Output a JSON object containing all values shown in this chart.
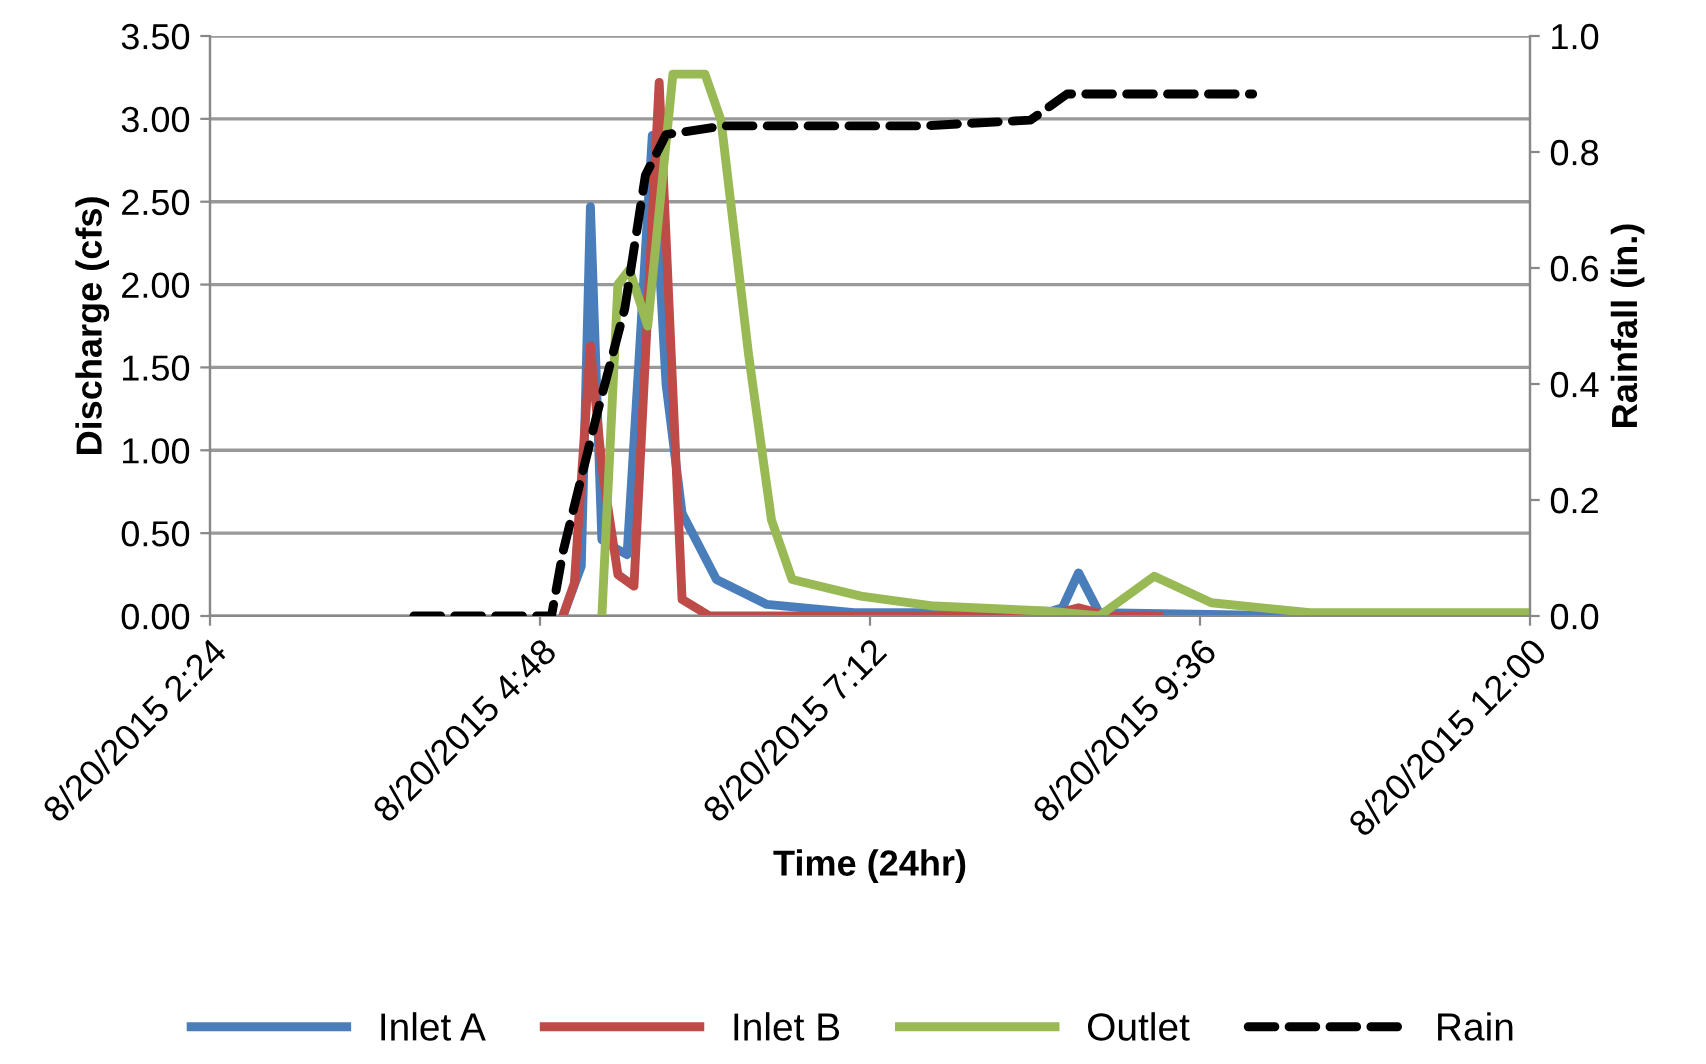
{
  "chart_data": {
    "type": "line",
    "xlabel": "Time (24hr)",
    "ylabel": "Discharge (cfs)",
    "y2label": "Rainfall (in.)",
    "xlim": [
      "2015-08-20T02:24",
      "2015-08-20T12:00"
    ],
    "xticks": [
      {
        "value": "2015-08-20T02:24",
        "label": "8/20/2015 2:24"
      },
      {
        "value": "2015-08-20T04:48",
        "label": "8/20/2015 4:48"
      },
      {
        "value": "2015-08-20T07:12",
        "label": "8/20/2015 7:12"
      },
      {
        "value": "2015-08-20T09:36",
        "label": "8/20/2015 9:36"
      },
      {
        "value": "2015-08-20T12:00",
        "label": "8/20/2015 12:00"
      }
    ],
    "ylim": [
      0,
      3.5
    ],
    "yticks": [
      {
        "value": 0,
        "label": "0.00"
      },
      {
        "value": 0.5,
        "label": "0.50"
      },
      {
        "value": 1,
        "label": "1.00"
      },
      {
        "value": 1.5,
        "label": "1.50"
      },
      {
        "value": 2,
        "label": "2.00"
      },
      {
        "value": 2.5,
        "label": "2.50"
      },
      {
        "value": 3,
        "label": "3.00"
      },
      {
        "value": 3.5,
        "label": "3.50"
      }
    ],
    "y2lim": [
      0,
      1.0
    ],
    "y2ticks": [
      {
        "value": 0,
        "label": "0.0"
      },
      {
        "value": 0.2,
        "label": "0.2"
      },
      {
        "value": 0.4,
        "label": "0.4"
      },
      {
        "value": 0.6,
        "label": "0.6"
      },
      {
        "value": 0.8,
        "label": "0.8"
      },
      {
        "value": 1.0,
        "label": "1.0"
      }
    ],
    "grid": "y",
    "legend": "bottom",
    "marker": "none",
    "series": [
      {
        "name": "Inlet A",
        "color": "#4a7ebb",
        "x": [
          "2015-08-20T04:58",
          "2015-08-20T05:06",
          "2015-08-20T05:10",
          "2015-08-20T05:15",
          "2015-08-20T05:22",
          "2015-08-20T05:26",
          "2015-08-20T05:31",
          "2015-08-20T05:37",
          "2015-08-20T05:43",
          "2015-08-20T05:50",
          "2015-08-20T06:05",
          "2015-08-20T06:27",
          "2015-08-20T07:05",
          "2015-08-20T08:29",
          "2015-08-20T08:36",
          "2015-08-20T08:43",
          "2015-08-20T08:52",
          "2015-08-20T10:21"
        ],
        "values": [
          0,
          0.3,
          2.47,
          0.46,
          0.4,
          0.37,
          1.5,
          2.9,
          1.4,
          0.62,
          0.22,
          0.07,
          0.02,
          0.02,
          0.05,
          0.26,
          0.02,
          0.0
        ]
      },
      {
        "name": "Inlet B",
        "color": "#be4b48",
        "x": [
          "2015-08-20T04:58",
          "2015-08-20T05:03",
          "2015-08-20T05:10",
          "2015-08-20T05:15",
          "2015-08-20T05:22",
          "2015-08-20T05:29",
          "2015-08-20T05:40",
          "2015-08-20T05:50",
          "2015-08-20T06:02",
          "2015-08-20T08:29",
          "2015-08-20T08:43",
          "2015-08-20T08:57",
          "2015-08-20T09:18"
        ],
        "values": [
          0,
          0.2,
          1.63,
          0.9,
          0.25,
          0.18,
          3.22,
          0.1,
          0,
          0,
          0.05,
          0,
          0
        ]
      },
      {
        "name": "Outlet",
        "color": "#98b954",
        "x": [
          "2015-08-20T05:15",
          "2015-08-20T05:22",
          "2015-08-20T05:27",
          "2015-08-20T05:35",
          "2015-08-20T05:46",
          "2015-08-20T06:00",
          "2015-08-20T06:07",
          "2015-08-20T06:19",
          "2015-08-20T06:29",
          "2015-08-20T06:38",
          "2015-08-20T07:08",
          "2015-08-20T07:40",
          "2015-08-20T08:29",
          "2015-08-20T08:52",
          "2015-08-20T09:16",
          "2015-08-20T09:41",
          "2015-08-20T10:24",
          "2015-08-20T12:00"
        ],
        "values": [
          0,
          2.0,
          2.09,
          1.75,
          3.27,
          3.27,
          2.99,
          1.58,
          0.58,
          0.22,
          0.12,
          0.06,
          0.03,
          0.0,
          0.24,
          0.08,
          0.02,
          0.02
        ]
      },
      {
        "name": "Rain",
        "color": "#000000",
        "axis": "y2",
        "line_style": "dashed",
        "x": [
          "2015-08-20T03:53",
          "2015-08-20T04:53",
          "2015-08-20T04:58",
          "2015-08-20T05:13",
          "2015-08-20T05:25",
          "2015-08-20T05:34",
          "2015-08-20T05:43",
          "2015-08-20T06:08",
          "2015-08-20T07:35",
          "2015-08-20T08:22",
          "2015-08-20T08:38",
          "2015-08-20T09:59"
        ],
        "values": [
          0,
          0,
          0.11,
          0.35,
          0.53,
          0.76,
          0.83,
          0.845,
          0.845,
          0.855,
          0.9,
          0.9
        ]
      }
    ]
  }
}
